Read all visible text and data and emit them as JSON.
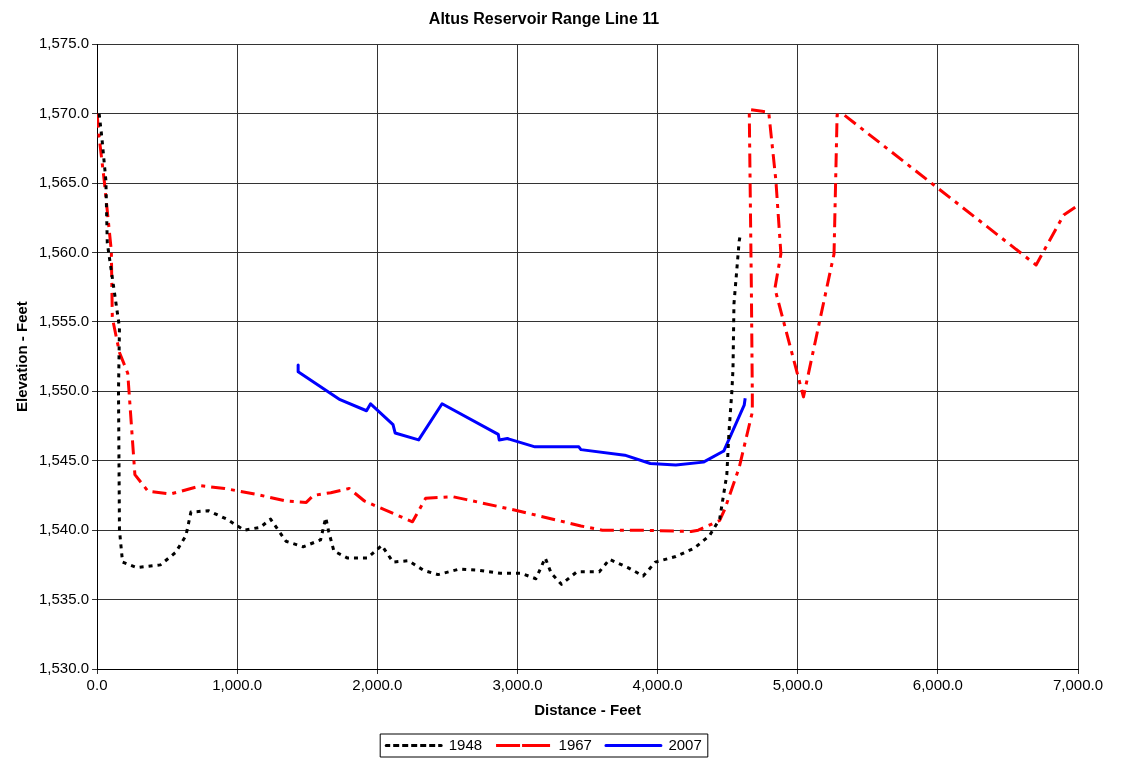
{
  "chart_data": {
    "type": "line",
    "title": "Altus Reservoir Range Line 11",
    "xlabel": "Distance - Feet",
    "ylabel": "Elevation - Feet",
    "xlim": [
      0,
      7000
    ],
    "xticks": [
      {
        "value": 0,
        "label": "0.0"
      },
      {
        "value": 1000,
        "label": "1,000.0"
      },
      {
        "value": 2000,
        "label": "2,000.0"
      },
      {
        "value": 3000,
        "label": "3,000.0"
      },
      {
        "value": 4000,
        "label": "4,000.0"
      },
      {
        "value": 5000,
        "label": "5,000.0"
      },
      {
        "value": 6000,
        "label": "6,000.0"
      },
      {
        "value": 7000,
        "label": "7,000.0"
      }
    ],
    "ylim": [
      1530,
      1575
    ],
    "yticks": [
      {
        "value": 1530,
        "label": "1,530.0"
      },
      {
        "value": 1535,
        "label": "1,535.0"
      },
      {
        "value": 1540,
        "label": "1,540.0"
      },
      {
        "value": 1545,
        "label": "1,545.0"
      },
      {
        "value": 1550,
        "label": "1,550.0"
      },
      {
        "value": 1555,
        "label": "1,555.0"
      },
      {
        "value": 1560,
        "label": "1,560.0"
      },
      {
        "value": 1565,
        "label": "1,565.0"
      },
      {
        "value": 1570,
        "label": "1,570.0"
      },
      {
        "value": 1575,
        "label": "1,575.0"
      }
    ],
    "grid": true,
    "legend": "bottom",
    "marker": "none",
    "series": [
      {
        "name": "1948",
        "color": "#000000",
        "line_style": "dotted",
        "x": [
          15,
          34,
          63,
          73,
          160,
          153,
          160,
          182,
          284,
          452,
          561,
          634,
          670,
          794,
          925,
          1049,
          1165,
          1238,
          1348,
          1471,
          1595,
          1632,
          1653,
          1690,
          1785,
          1930,
          2032,
          2112,
          2222,
          2331,
          2433,
          2586,
          2732,
          2877,
          3023,
          3132,
          3198,
          3241,
          3314,
          3424,
          3584,
          3657,
          3788,
          3897,
          3984,
          4130,
          4261,
          4370,
          4443,
          4494,
          4509,
          4530,
          4538,
          4545,
          4582,
          4589
        ],
        "values": [
          1570,
          1568.3,
          1565.2,
          1560.7,
          1554.6,
          1550,
          1540,
          1537.7,
          1537.3,
          1537.5,
          1538.4,
          1539.6,
          1541.3,
          1541.4,
          1540.8,
          1540,
          1540.2,
          1540.8,
          1539.2,
          1538.8,
          1539.3,
          1540.9,
          1539.9,
          1538.5,
          1538,
          1538,
          1538.9,
          1537.7,
          1537.8,
          1537.1,
          1536.8,
          1537.2,
          1537.1,
          1536.9,
          1536.9,
          1536.5,
          1538,
          1536.9,
          1536.1,
          1537,
          1537,
          1537.9,
          1537.3,
          1536.7,
          1537.7,
          1538.1,
          1538.7,
          1539.6,
          1540.8,
          1544,
          1547,
          1550,
          1551.6,
          1556.3,
          1560.8,
          1561.2
        ]
      },
      {
        "name": "1967",
        "color": "#ff0000",
        "line_style": "dashed",
        "x": [
          0,
          15,
          51,
          102,
          109,
          160,
          219,
          270,
          364,
          524,
          743,
          911,
          1129,
          1348,
          1493,
          1544,
          1668,
          1799,
          1908,
          2251,
          2345,
          2542,
          2637,
          3001,
          3453,
          3606,
          3853,
          4239,
          4290,
          4443,
          4479,
          4582,
          4676,
          4676,
          4669,
          4654,
          4793,
          4844,
          4880,
          4837,
          5041,
          5259,
          5281,
          5332,
          6701,
          6898,
          7000
        ],
        "values": [
          1570,
          1568.3,
          1565.2,
          1560.1,
          1555.3,
          1552.8,
          1551.3,
          1544,
          1542.8,
          1542.6,
          1543.2,
          1543,
          1542.6,
          1542.1,
          1542,
          1542.5,
          1542.7,
          1543,
          1542.1,
          1540.6,
          1542.3,
          1542.4,
          1542.2,
          1541.4,
          1540.3,
          1540,
          1540,
          1539.9,
          1540,
          1540.7,
          1541.5,
          1544.5,
          1548.5,
          1549.8,
          1557.6,
          1570.3,
          1570.1,
          1565.2,
          1559.9,
          1557.4,
          1549.6,
          1559.9,
          1569.9,
          1569.9,
          1559.1,
          1562.7,
          1563.4
        ]
      },
      {
        "name": "2007",
        "color": "#0000ff",
        "line_style": "solid",
        "x": [
          1435,
          1435,
          1734,
          1923,
          1952,
          2112,
          2127,
          2295,
          2462,
          2863,
          2870,
          2928,
          3125,
          3343,
          3438,
          3453,
          3766,
          3948,
          4130,
          4327,
          4472,
          4618,
          4625
        ],
        "values": [
          1551.9,
          1551.4,
          1549.4,
          1548.6,
          1549.1,
          1547.6,
          1547,
          1546.5,
          1549.1,
          1546.9,
          1546.5,
          1546.6,
          1546,
          1546,
          1546,
          1545.8,
          1545.4,
          1544.8,
          1544.7,
          1544.9,
          1545.7,
          1549,
          1549.5
        ]
      }
    ]
  }
}
